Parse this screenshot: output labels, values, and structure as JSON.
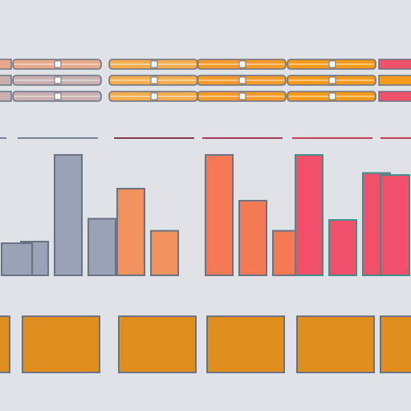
{
  "chart_data": {
    "type": "bar",
    "title": "",
    "xlabel": "",
    "ylabel": "",
    "ylim": [
      0,
      100
    ],
    "grid": false,
    "legend": "none",
    "categories": [
      "",
      "",
      "",
      "",
      "",
      ""
    ],
    "groups": [
      {
        "color": "#9aa2b6",
        "stroke": "#6a7286",
        "rule_color": "#7a8296",
        "swatch_bars": [
          "#e8a88a",
          "#c8b0b0",
          "#c8b0b0"
        ],
        "values": [
          28,
          100,
          47
        ],
        "footer_color": "#e08e1e"
      },
      {
        "color": "#f2925e",
        "stroke": "#6a7286",
        "rule_color": "#8a3a50",
        "swatch_bars": [
          "#f3ad4f",
          "#f3ad4f",
          "#f3ad4f"
        ],
        "values": [
          72,
          37,
          0
        ],
        "footer_color": "#e08e1e"
      },
      {
        "color": "#f47a56",
        "stroke": "#6a7286",
        "rule_color": "#a83a56",
        "swatch_bars": [
          "#f39a2a",
          "#f39a2a",
          "#f39a2a"
        ],
        "values": [
          100,
          62,
          37
        ],
        "footer_color": "#e08e1e"
      },
      {
        "color": "#f0506a",
        "stroke": "#3f8f8a",
        "rule_color": "#c83a5a",
        "swatch_bars": [
          "#f39a1a",
          "#f39a1a",
          "#f39a1a"
        ],
        "values": [
          100,
          46,
          85
        ],
        "footer_color": "#e08e1e"
      }
    ]
  }
}
